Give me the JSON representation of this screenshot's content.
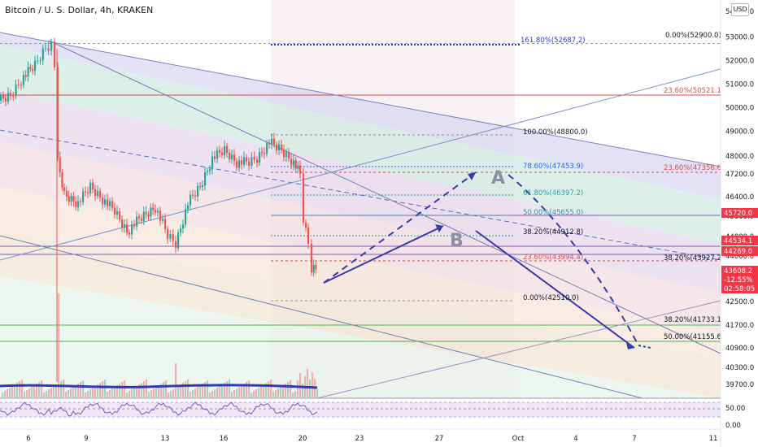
{
  "chart_data": {
    "type": "candlestick",
    "title": "Bitcoin / U. S. Dollar, 4h, KRAKEN",
    "currency": "USD",
    "y_ticks": [
      54000,
      53000,
      52000,
      51000,
      50000,
      49000,
      48000,
      47200,
      46400,
      45600,
      44800,
      44000,
      43200,
      42500,
      41700,
      40900,
      40300,
      39700
    ],
    "y_tick_labels": [
      "54000.0",
      "53000.0",
      "52000.0",
      "51000.0",
      "50000.0",
      "49000.0",
      "48000.0",
      "47200.0",
      "46400.0",
      "45600.0",
      "44800.0",
      "44000.0",
      "43200.0",
      "42500.0",
      "41700.0",
      "40900.0",
      "40300.0",
      "39700.0"
    ],
    "x_tick_labels": [
      "6",
      "9",
      "13",
      "16",
      "20",
      "23",
      "27",
      "Oct",
      "4",
      "7",
      "11"
    ],
    "rsi_tick_labels": [
      "50.00",
      "0.00"
    ],
    "price_badges": [
      {
        "text": "45720.0",
        "color": "#f23645"
      },
      {
        "text": "44534.1",
        "color": "#f23645"
      },
      {
        "text": "44269.0",
        "color": "#f23645"
      },
      {
        "text": "43608.2",
        "color": "#f23645"
      },
      {
        "text": "-12.55%",
        "color": "#f23645"
      },
      {
        "text": "02:58:05",
        "color": "#f23645"
      }
    ],
    "fib_top_labels": [
      "161.80%(52687.2)",
      "0.00%(52900.0)",
      "23.60%(50521.1)",
      "23.60%(47356.6)",
      "38.20%(43927.2)",
      "38.20%(41733.1)",
      "50.00%(41155.6)"
    ],
    "fib_mid_labels": [
      "100.00%(48800.0)",
      "78.60%(47453.9)",
      "61.80%(46397.2)",
      "50.00%(45655.0)",
      "38.20%(44912.8)",
      "23.60%(43994.4)",
      "0.00%(42510.0)"
    ],
    "wave_labels": [
      "A",
      "B"
    ],
    "colors": {
      "up": "#26a69a",
      "down": "#ef5350",
      "arrow": "#3a3aa8",
      "rsi": "#7e57c2"
    }
  }
}
